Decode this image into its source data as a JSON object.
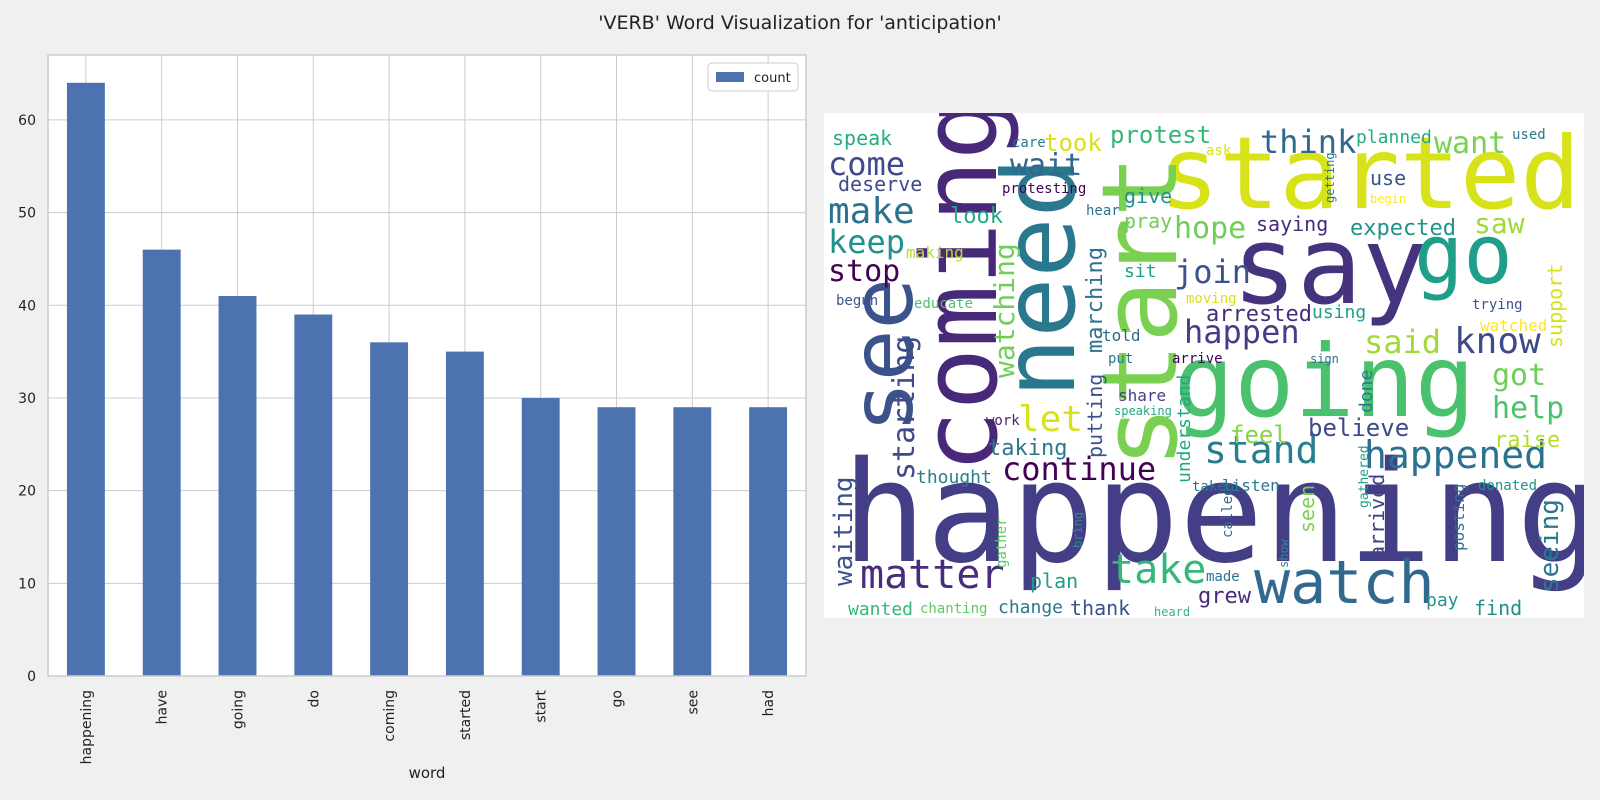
{
  "suptitle": "'VERB' Word Visualization for 'anticipation'",
  "chart_data": [
    {
      "type": "bar",
      "categories": [
        "happening",
        "have",
        "going",
        "do",
        "coming",
        "started",
        "start",
        "go",
        "see",
        "had"
      ],
      "series": [
        {
          "name": "count",
          "values": [
            64,
            46,
            41,
            39,
            36,
            35,
            30,
            29,
            29,
            29
          ],
          "color": "#4c72b0"
        }
      ],
      "xlabel": "word",
      "ylabel": "",
      "ylim": [
        0,
        67
      ],
      "yticks": [
        0,
        10,
        20,
        30,
        40,
        50,
        60
      ],
      "grid": true,
      "legend": "top-right"
    },
    {
      "type": "wordcloud",
      "words": [
        {
          "text": "happening",
          "size": 140,
          "color": "#433e85",
          "rot": 0
        },
        {
          "text": "going",
          "size": 100,
          "color": "#4ac16d",
          "rot": 0
        },
        {
          "text": "say",
          "size": 108,
          "color": "#46337e",
          "rot": 0
        },
        {
          "text": "started",
          "size": 100,
          "color": "#d8e219",
          "rot": 0
        },
        {
          "text": "go",
          "size": 82,
          "color": "#1f9e89",
          "rot": 0
        },
        {
          "text": "start",
          "size": 104,
          "color": "#7ad151",
          "rot": -90
        },
        {
          "text": "need",
          "size": 100,
          "color": "#2a788e",
          "rot": -90
        },
        {
          "text": "coming",
          "size": 104,
          "color": "#482878",
          "rot": -90
        },
        {
          "text": "see",
          "size": 86,
          "color": "#3b528b",
          "rot": -90
        },
        {
          "text": "watch",
          "size": 60,
          "color": "#31688e",
          "rot": 0
        },
        {
          "text": "matter",
          "size": 40,
          "color": "#472d7b",
          "rot": 0
        },
        {
          "text": "take",
          "size": 40,
          "color": "#35b779",
          "rot": 0
        },
        {
          "text": "happened",
          "size": 38,
          "color": "#2c728e",
          "rot": 0
        },
        {
          "text": "stand",
          "size": 38,
          "color": "#287d8e",
          "rot": 0
        },
        {
          "text": "continue",
          "size": 32,
          "color": "#440154",
          "rot": 0
        },
        {
          "text": "make",
          "size": 36,
          "color": "#2c728e",
          "rot": 0
        },
        {
          "text": "come",
          "size": 32,
          "color": "#3e4a89",
          "rot": 0
        },
        {
          "text": "keep",
          "size": 32,
          "color": "#21918c",
          "rot": 0
        },
        {
          "text": "stop",
          "size": 30,
          "color": "#440154",
          "rot": 0
        },
        {
          "text": "wait",
          "size": 30,
          "color": "#31688e",
          "rot": 0
        },
        {
          "text": "think",
          "size": 32,
          "color": "#31688e",
          "rot": 0
        },
        {
          "text": "want",
          "size": 30,
          "color": "#7ad151",
          "rot": 0
        },
        {
          "text": "hope",
          "size": 30,
          "color": "#6ece58",
          "rot": 0
        },
        {
          "text": "join",
          "size": 32,
          "color": "#3b528b",
          "rot": 0
        },
        {
          "text": "happen",
          "size": 32,
          "color": "#433e85",
          "rot": 0
        },
        {
          "text": "know",
          "size": 36,
          "color": "#3e4a89",
          "rot": 0
        },
        {
          "text": "said",
          "size": 32,
          "color": "#a0da39",
          "rot": 0
        },
        {
          "text": "got",
          "size": 30,
          "color": "#6ece58",
          "rot": 0
        },
        {
          "text": "help",
          "size": 30,
          "color": "#4ac16d",
          "rot": 0
        },
        {
          "text": "saw",
          "size": 28,
          "color": "#a0da39",
          "rot": 0
        },
        {
          "text": "expected",
          "size": 22,
          "color": "#21918c",
          "rot": 0
        },
        {
          "text": "protest",
          "size": 24,
          "color": "#35b779",
          "rot": 0
        },
        {
          "text": "took",
          "size": 24,
          "color": "#d8e219",
          "rot": 0
        },
        {
          "text": "speak",
          "size": 20,
          "color": "#25ab82",
          "rot": 0
        },
        {
          "text": "deserve",
          "size": 20,
          "color": "#3e4a89",
          "rot": 0
        },
        {
          "text": "look",
          "size": 22,
          "color": "#25ab82",
          "rot": 0
        },
        {
          "text": "making",
          "size": 16,
          "color": "#b5de2b",
          "rot": 0
        },
        {
          "text": "begun",
          "size": 14,
          "color": "#3b528b",
          "rot": 0
        },
        {
          "text": "educate",
          "size": 14,
          "color": "#4ac16d",
          "rot": 0
        },
        {
          "text": "let",
          "size": 36,
          "color": "#d8e219",
          "rot": 0
        },
        {
          "text": "taking",
          "size": 22,
          "color": "#2a788e",
          "rot": 0
        },
        {
          "text": "thought",
          "size": 18,
          "color": "#287d8e",
          "rot": 0
        },
        {
          "text": "feel",
          "size": 24,
          "color": "#86d549",
          "rot": 0
        },
        {
          "text": "believe",
          "size": 24,
          "color": "#3e4a89",
          "rot": 0
        },
        {
          "text": "raise",
          "size": 22,
          "color": "#b5de2b",
          "rot": 0
        },
        {
          "text": "give",
          "size": 20,
          "color": "#21918c",
          "rot": 0
        },
        {
          "text": "pray",
          "size": 20,
          "color": "#6ece58",
          "rot": 0
        },
        {
          "text": "saying",
          "size": 20,
          "color": "#472d7b",
          "rot": 0
        },
        {
          "text": "use",
          "size": 20,
          "color": "#3b528b",
          "rot": 0
        },
        {
          "text": "using",
          "size": 18,
          "color": "#1f9e89",
          "rot": 0
        },
        {
          "text": "arrested",
          "size": 22,
          "color": "#472d7b",
          "rot": 0
        },
        {
          "text": "sit",
          "size": 18,
          "color": "#1f9e89",
          "rot": 0
        },
        {
          "text": "told",
          "size": 16,
          "color": "#31688e",
          "rot": 0
        },
        {
          "text": "put",
          "size": 14,
          "color": "#2a788e",
          "rot": 0
        },
        {
          "text": "arrive",
          "size": 14,
          "color": "#440154",
          "rot": 0
        },
        {
          "text": "share",
          "size": 16,
          "color": "#433e85",
          "rot": 0
        },
        {
          "text": "speaking",
          "size": 12,
          "color": "#22a884",
          "rot": 0
        },
        {
          "text": "moving",
          "size": 14,
          "color": "#d8e219",
          "rot": 0
        },
        {
          "text": "sign",
          "size": 12,
          "color": "#2c728e",
          "rot": 0
        },
        {
          "text": "work",
          "size": 14,
          "color": "#481f70",
          "rot": 0
        },
        {
          "text": "protesting",
          "size": 14,
          "color": "#440154",
          "rot": 0
        },
        {
          "text": "hear",
          "size": 14,
          "color": "#2c728e",
          "rot": 0
        },
        {
          "text": "care",
          "size": 14,
          "color": "#2a788e",
          "rot": 0
        },
        {
          "text": "ask",
          "size": 14,
          "color": "#d8e219",
          "rot": 0
        },
        {
          "text": "planned",
          "size": 18,
          "color": "#25ab82",
          "rot": 0
        },
        {
          "text": "used",
          "size": 14,
          "color": "#2a788e",
          "rot": 0
        },
        {
          "text": "begin",
          "size": 12,
          "color": "#fde725",
          "rot": 0
        },
        {
          "text": "trying",
          "size": 14,
          "color": "#3b528b",
          "rot": 0
        },
        {
          "text": "watched",
          "size": 16,
          "color": "#fde725",
          "rot": 0
        },
        {
          "text": "donated",
          "size": 14,
          "color": "#21918c",
          "rot": 0
        },
        {
          "text": "listen",
          "size": 16,
          "color": "#2a788e",
          "rot": 0
        },
        {
          "text": "taken",
          "size": 14,
          "color": "#2c728e",
          "rot": 0
        },
        {
          "text": "plan",
          "size": 20,
          "color": "#1f9e89",
          "rot": 0
        },
        {
          "text": "change",
          "size": 18,
          "color": "#2a788e",
          "rot": 0
        },
        {
          "text": "chanting",
          "size": 14,
          "color": "#5ec962",
          "rot": 0
        },
        {
          "text": "wanted",
          "size": 18,
          "color": "#35b779",
          "rot": 0
        },
        {
          "text": "thank",
          "size": 20,
          "color": "#3b528b",
          "rot": 0
        },
        {
          "text": "heard",
          "size": 12,
          "color": "#35b779",
          "rot": 0
        },
        {
          "text": "grew",
          "size": 22,
          "color": "#472d7b",
          "rot": 0
        },
        {
          "text": "made",
          "size": 14,
          "color": "#2c728e",
          "rot": 0
        },
        {
          "text": "pay",
          "size": 18,
          "color": "#21918c",
          "rot": 0
        },
        {
          "text": "find",
          "size": 20,
          "color": "#21918c",
          "rot": 0
        },
        {
          "text": "seeing",
          "size": 26,
          "color": "#2a788e",
          "rot": -90
        },
        {
          "text": "support",
          "size": 20,
          "color": "#d8e219",
          "rot": -90
        },
        {
          "text": "waiting",
          "size": 26,
          "color": "#3b528b",
          "rot": -90
        },
        {
          "text": "starting",
          "size": 30,
          "color": "#3e4a89",
          "rot": -90
        },
        {
          "text": "watching",
          "size": 28,
          "color": "#6ece58",
          "rot": -90
        },
        {
          "text": "marching",
          "size": 22,
          "color": "#2c728e",
          "rot": -90
        },
        {
          "text": "putting",
          "size": 20,
          "color": "#3b528b",
          "rot": -90
        },
        {
          "text": "understand",
          "size": 18,
          "color": "#22a884",
          "rot": -90
        },
        {
          "text": "done",
          "size": 18,
          "color": "#2a788e",
          "rot": -90
        },
        {
          "text": "seen",
          "size": 20,
          "color": "#7ad151",
          "rot": -90
        },
        {
          "text": "arrived",
          "size": 20,
          "color": "#433e85",
          "rot": -90
        },
        {
          "text": "posting",
          "size": 16,
          "color": "#2c728e",
          "rot": -90
        },
        {
          "text": "gathered",
          "size": 13,
          "color": "#1f9e89",
          "rot": -90
        },
        {
          "text": "called",
          "size": 14,
          "color": "#31688e",
          "rot": -90
        },
        {
          "text": "show",
          "size": 12,
          "color": "#21918c",
          "rot": -90
        },
        {
          "text": "gather",
          "size": 14,
          "color": "#5ec962",
          "rot": -90
        },
        {
          "text": "bring",
          "size": 12,
          "color": "#21918c",
          "rot": -90
        },
        {
          "text": "getting",
          "size": 12,
          "color": "#2c728e",
          "rot": -90
        }
      ]
    }
  ]
}
